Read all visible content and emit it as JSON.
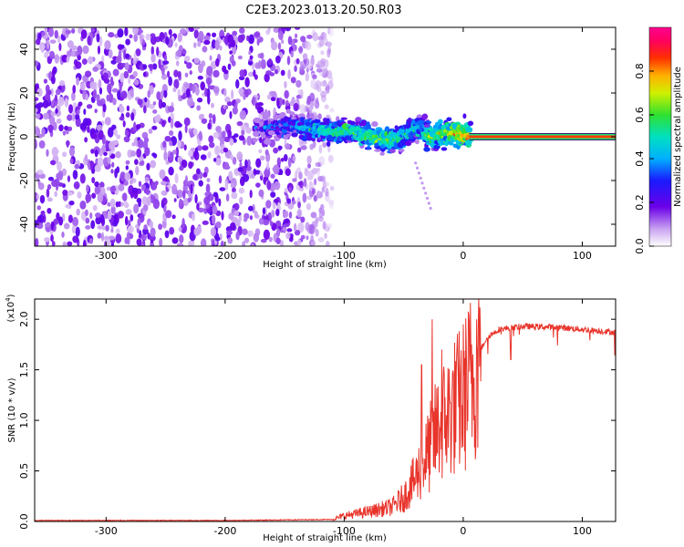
{
  "title": "C2E3.2023.013.20.50.R03",
  "colors": {
    "snr_line": "#e8342b",
    "spectrogram_noise": "#6a00e8",
    "reference_line": "#d43a5a"
  },
  "chart_data": [
    {
      "type": "heatmap",
      "name_role": "spectrogram",
      "xlabel": "Height of straight line (km)",
      "ylabel": "Frequency (Hz)",
      "xlim": [
        -360,
        128
      ],
      "ylim": [
        -50,
        50
      ],
      "xticks": [
        -300,
        -200,
        -100,
        0,
        100
      ],
      "yticks": [
        -40,
        -20,
        0,
        20,
        40
      ],
      "xtick_labels": [
        "-300",
        "-200",
        "-100",
        "0",
        "100"
      ],
      "ytick_labels": [
        "-40",
        "-20",
        "0",
        "20",
        "40"
      ],
      "colorbar": {
        "label": "Normalized spectral amplitude",
        "range": [
          0,
          1
        ],
        "ticks": [
          0.0,
          0.2,
          0.4,
          0.6,
          0.8
        ],
        "tick_labels": [
          "0.0",
          "0.2",
          "0.4",
          "0.6",
          "0.8"
        ],
        "colormap": "rainbow (white-purple-blue-cyan-green-yellow-red-magenta)"
      },
      "features": {
        "noise_region_x": [
          -360,
          -120
        ],
        "signal_track": [
          {
            "x": -175,
            "freq": 4,
            "amp": 0.25
          },
          {
            "x": -150,
            "freq": 5,
            "amp": 0.35
          },
          {
            "x": -130,
            "freq": 4,
            "amp": 0.45
          },
          {
            "x": -110,
            "freq": 2,
            "amp": 0.55
          },
          {
            "x": -95,
            "freq": 3,
            "amp": 0.5
          },
          {
            "x": -85,
            "freq": 1,
            "amp": 0.55
          },
          {
            "x": -70,
            "freq": -1,
            "amp": 0.6
          },
          {
            "x": -55,
            "freq": -2,
            "amp": 0.55
          },
          {
            "x": -45,
            "freq": 2,
            "amp": 0.5
          },
          {
            "x": -35,
            "freq": 4,
            "amp": 0.45
          },
          {
            "x": -28,
            "freq": 0,
            "amp": 0.6
          },
          {
            "x": -15,
            "freq": 1,
            "amp": 0.65
          },
          {
            "x": -5,
            "freq": 2,
            "amp": 0.7
          },
          {
            "x": 5,
            "freq": 0,
            "amp": 0.75
          }
        ],
        "tone_line": {
          "freq": 0,
          "x_start": 5,
          "x_end": 128,
          "amp": 0.85
        }
      }
    },
    {
      "type": "line",
      "name_role": "snr",
      "xlabel": "Height of straight line (km)",
      "ylabel": "SNR (10 * v/v)",
      "y_scale_label": "(x10",
      "y_scale_exponent": "4",
      "y_scale_suffix": ")",
      "xlim": [
        -360,
        128
      ],
      "ylim": [
        0,
        2.2
      ],
      "xticks": [
        -300,
        -200,
        -100,
        0,
        100
      ],
      "yticks": [
        0.0,
        0.5,
        1.0,
        1.5,
        2.0
      ],
      "xtick_labels": [
        "-300",
        "-200",
        "-100",
        "0",
        "100"
      ],
      "ytick_labels": [
        "0.0",
        "0.5",
        "1.0",
        "1.5",
        "2.0"
      ],
      "envelope": {
        "x": [
          -360,
          -200,
          -110,
          -100,
          -80,
          -60,
          -50,
          -40,
          -30,
          -20,
          -10,
          0,
          10,
          20,
          30,
          50,
          80,
          128
        ],
        "y": [
          0.01,
          0.01,
          0.02,
          0.06,
          0.1,
          0.15,
          0.25,
          0.45,
          0.7,
          1.0,
          1.15,
          1.3,
          1.6,
          1.82,
          1.9,
          1.93,
          1.92,
          1.87
        ]
      },
      "spikes": [
        {
          "x": -35,
          "y": 1.55
        },
        {
          "x": -26,
          "y": 2.0
        },
        {
          "x": -18,
          "y": 1.7
        },
        {
          "x": 13,
          "y": 2.2
        },
        {
          "x": 40,
          "y": 1.6
        }
      ]
    }
  ]
}
